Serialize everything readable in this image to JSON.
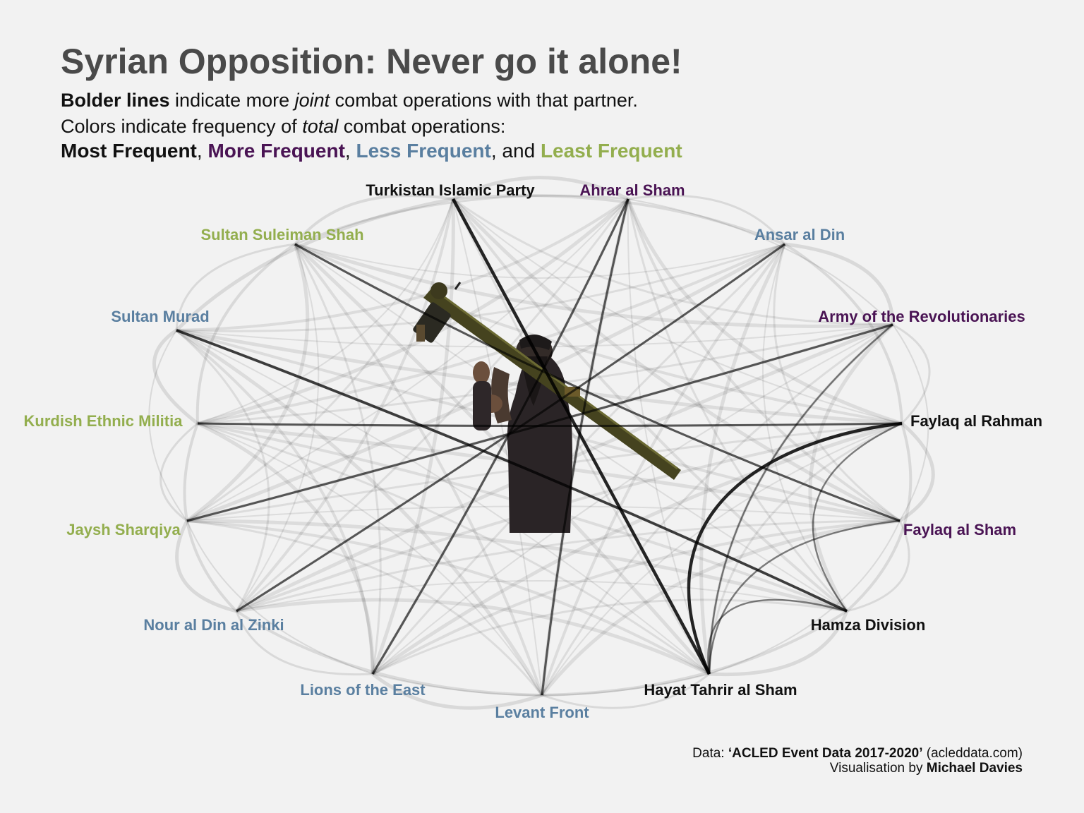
{
  "title": "Syrian Opposition: Never go it alone!",
  "subtitle": {
    "line1": {
      "bold": "Bolder lines",
      "pre": " indicate more ",
      "italic": "joint",
      "post": " combat operations with that partner."
    },
    "line2": {
      "pre": "Colors indicate frequency of ",
      "italic": "total",
      "post": " combat operations:"
    },
    "legend": [
      {
        "label": "Most Frequent",
        "color": "#111111"
      },
      {
        "label": "More Frequent",
        "color": "#4a1454"
      },
      {
        "label": "Less Frequent",
        "color": "#5a7fa0"
      },
      {
        "label": "Least Frequent",
        "color": "#93ae4e"
      }
    ],
    "sep": ",  ",
    "and": ", and "
  },
  "colors": {
    "most": "#111111",
    "more": "#4a1454",
    "less": "#5a7fa0",
    "least": "#93ae4e",
    "background": "#f2f2f2"
  },
  "chart_data": {
    "type": "network",
    "nodes": [
      {
        "id": "tip",
        "label": "Turkistan Islamic Party",
        "frequency": "most"
      },
      {
        "id": "aas",
        "label": "Ahrar al Sham",
        "frequency": "more"
      },
      {
        "id": "aad",
        "label": "Ansar al Din",
        "frequency": "less"
      },
      {
        "id": "aor",
        "label": "Army of the Revolutionaries",
        "frequency": "more"
      },
      {
        "id": "far",
        "label": "Faylaq al Rahman",
        "frequency": "most"
      },
      {
        "id": "fas",
        "label": "Faylaq al Sham",
        "frequency": "more"
      },
      {
        "id": "hd",
        "label": "Hamza Division",
        "frequency": "most"
      },
      {
        "id": "hts",
        "label": "Hayat Tahrir al Sham",
        "frequency": "most"
      },
      {
        "id": "lf",
        "label": "Levant Front",
        "frequency": "less"
      },
      {
        "id": "loe",
        "label": "Lions of the East",
        "frequency": "less"
      },
      {
        "id": "ndz",
        "label": "Nour al Din al Zinki",
        "frequency": "less"
      },
      {
        "id": "js",
        "label": "Jaysh Sharqiya",
        "frequency": "least"
      },
      {
        "id": "kem",
        "label": "Kurdish Ethnic Militia",
        "frequency": "least"
      },
      {
        "id": "sm",
        "label": "Sultan Murad",
        "frequency": "less"
      },
      {
        "id": "sss",
        "label": "Sultan Suleiman Shah",
        "frequency": "least"
      }
    ],
    "strong_links": [
      {
        "source": "tip",
        "target": "hts",
        "weight": 5
      },
      {
        "source": "far",
        "target": "hts",
        "weight": 5
      },
      {
        "source": "sm",
        "target": "hd",
        "weight": 4
      },
      {
        "source": "sss",
        "target": "fas",
        "weight": 3
      },
      {
        "source": "kem",
        "target": "far",
        "weight": 3
      },
      {
        "source": "js",
        "target": "aor",
        "weight": 3
      },
      {
        "source": "aas",
        "target": "lf",
        "weight": 3
      },
      {
        "source": "ndz",
        "target": "aad",
        "weight": 3
      },
      {
        "source": "loe",
        "target": "aas",
        "weight": 3
      },
      {
        "source": "aor",
        "target": "hts",
        "weight": 2
      },
      {
        "source": "hd",
        "target": "hts",
        "weight": 2
      },
      {
        "source": "fas",
        "target": "hts",
        "weight": 2
      },
      {
        "source": "far",
        "target": "hd",
        "weight": 2
      }
    ]
  },
  "photo": {
    "description_icon": "fighter-with-launcher-icon"
  },
  "credits": {
    "data_prefix": "Data: ",
    "data_source": "‘ACLED Event Data 2017-2020’",
    "data_suffix": "  (acleddata.com)",
    "vis_prefix": "Visualisation by ",
    "vis_author": "Michael Davies"
  }
}
